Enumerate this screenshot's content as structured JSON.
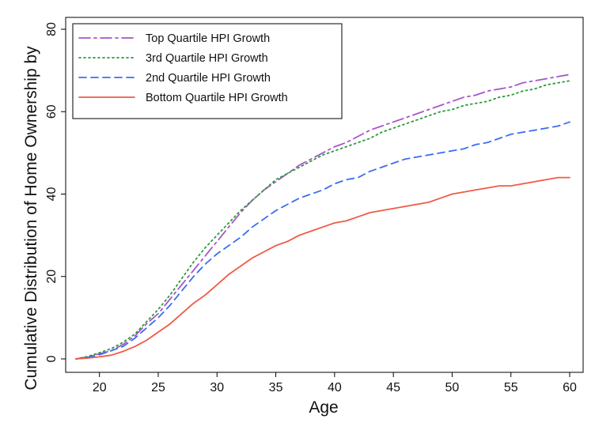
{
  "chart_data": {
    "type": "line",
    "title": "",
    "xlabel": "Age",
    "ylabel": "Cumulative Distribution of Home Ownership by",
    "xlim": [
      18,
      60
    ],
    "ylim": [
      0,
      80
    ],
    "x_ticks": [
      20,
      25,
      30,
      35,
      40,
      45,
      50,
      55,
      60
    ],
    "y_ticks": [
      0,
      20,
      40,
      60,
      80
    ],
    "grid": false,
    "legend_position": "top-left",
    "x": [
      18,
      19,
      20,
      21,
      22,
      23,
      24,
      25,
      26,
      27,
      28,
      29,
      30,
      31,
      32,
      33,
      34,
      35,
      36,
      37,
      38,
      39,
      40,
      41,
      42,
      43,
      44,
      45,
      46,
      47,
      48,
      49,
      50,
      51,
      52,
      53,
      54,
      55,
      56,
      57,
      58,
      59,
      60
    ],
    "series": [
      {
        "name": "Top Quartile HPI Growth",
        "color": "#a855c8",
        "dash": "dashdot",
        "values": [
          0,
          0.5,
          1.2,
          2,
          3.5,
          5.5,
          8.5,
          11,
          14.5,
          18,
          21.5,
          25,
          28.5,
          32,
          35.5,
          38.5,
          41,
          43,
          45,
          47,
          48.5,
          50,
          51.5,
          52.5,
          54,
          55.5,
          56.5,
          57.5,
          58.5,
          59.5,
          60.5,
          61.5,
          62.5,
          63.5,
          64,
          65,
          65.5,
          66,
          67,
          67.5,
          68,
          68.5,
          69
        ]
      },
      {
        "name": "3rd Quartile HPI Growth",
        "color": "#2e9a3c",
        "dash": "dot",
        "values": [
          0,
          0.6,
          1.5,
          2.5,
          4,
          6,
          9,
          12,
          15.5,
          19.5,
          23.5,
          27,
          30,
          33,
          36,
          38.5,
          41,
          43.5,
          45,
          46.5,
          48,
          49.5,
          50.5,
          51.5,
          52.5,
          53.5,
          55,
          56,
          57,
          58,
          59,
          60,
          60.5,
          61.5,
          62,
          62.5,
          63.5,
          64,
          65,
          65.5,
          66.5,
          67,
          67.5
        ]
      },
      {
        "name": "2nd Quartile HPI Growth",
        "color": "#3b6df0",
        "dash": "dash",
        "values": [
          0,
          0.4,
          1,
          2,
          3,
          5,
          7.5,
          10,
          13,
          16.5,
          20,
          23,
          25.5,
          27.5,
          29.5,
          32,
          34,
          36,
          37.5,
          39,
          40,
          41,
          42.5,
          43.5,
          44,
          45.5,
          46.5,
          47.5,
          48.5,
          49,
          49.5,
          50,
          50.5,
          51,
          52,
          52.5,
          53.5,
          54.5,
          55,
          55.5,
          56,
          56.5,
          57.5
        ]
      },
      {
        "name": "Bottom Quartile HPI Growth",
        "color": "#f05a46",
        "dash": "solid",
        "values": [
          0,
          0.2,
          0.5,
          0.9,
          1.8,
          3,
          4.5,
          6.5,
          8.5,
          11,
          13.5,
          15.5,
          18,
          20.5,
          22.5,
          24.5,
          26,
          27.5,
          28.5,
          30,
          31,
          32,
          33,
          33.5,
          34.5,
          35.5,
          36,
          36.5,
          37,
          37.5,
          38,
          39,
          40,
          40.5,
          41,
          41.5,
          42,
          42,
          42.5,
          43,
          43.5,
          44,
          44
        ]
      }
    ]
  }
}
